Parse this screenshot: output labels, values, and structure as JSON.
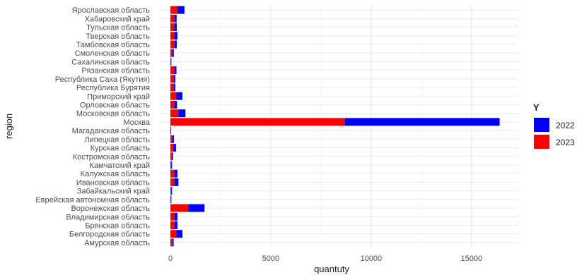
{
  "chart_data": {
    "type": "bar",
    "orientation": "horizontal",
    "stacked": true,
    "xlabel": "quantuty",
    "ylabel": "region",
    "xlim": [
      0,
      17500
    ],
    "x_ticks": [
      0,
      5000,
      10000,
      15000
    ],
    "x_tick_labels": [
      "0",
      "5000",
      "10000",
      "15000"
    ],
    "grid": true,
    "legend": {
      "title": "Y",
      "position": "right",
      "entries": [
        {
          "label": "2022",
          "color": "#0000ff"
        },
        {
          "label": "2023",
          "color": "#ff0000"
        }
      ]
    },
    "categories": [
      "Амурская область",
      "Белгородская область",
      "Брянская область",
      "Владимирская область",
      "Воронежская область",
      "Еврейская автономная область",
      "Забайкальский край",
      "Ивановская область",
      "Калужская область",
      "Камчатский край",
      "Костромская область",
      "Курская область",
      "Липецкая область",
      "Магаданская область",
      "Москва",
      "Московская область",
      "Орловская область",
      "Приморский край",
      "Республика Бурятия",
      "Республика Саха (Якутия)",
      "Рязанская область",
      "Сахалинская область",
      "Смоленская область",
      "Тамбовская область",
      "Тверская область",
      "Тульская область",
      "Хабаровский край",
      "Ярославская область"
    ],
    "series": [
      {
        "name": "2023",
        "color": "#ff0000",
        "values": [
          100,
          300,
          200,
          200,
          900,
          20,
          40,
          200,
          200,
          40,
          80,
          150,
          100,
          10,
          8700,
          400,
          200,
          300,
          180,
          180,
          200,
          20,
          100,
          200,
          200,
          200,
          200,
          350
        ]
      },
      {
        "name": "2022",
        "color": "#0000ff",
        "values": [
          60,
          300,
          150,
          150,
          800,
          20,
          40,
          200,
          150,
          40,
          50,
          130,
          80,
          10,
          7700,
          350,
          130,
          300,
          70,
          70,
          100,
          20,
          70,
          120,
          150,
          120,
          110,
          350
        ]
      }
    ]
  }
}
